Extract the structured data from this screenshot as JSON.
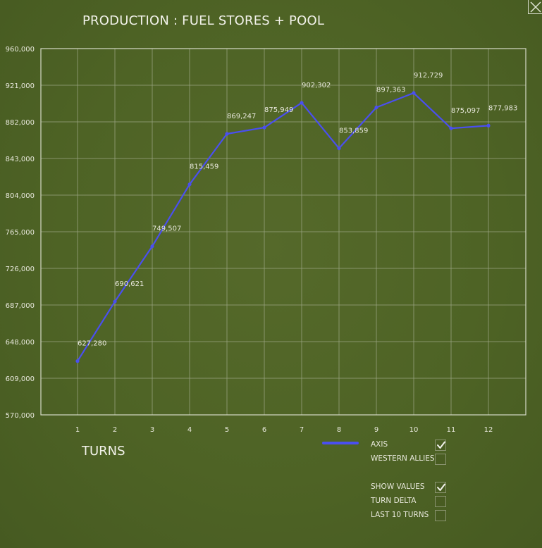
{
  "title": "PRODUCTION : FUEL STORES + POOL",
  "close_icon": "close-icon",
  "turns_label": "TURNS",
  "colors": {
    "axis_line": "#4a4ff0",
    "grid": "#9aa482",
    "frame": "#d6dac8",
    "text": "#e8e8dc"
  },
  "legend": [
    {
      "label": "AXIS",
      "checked": true
    },
    {
      "label": "WESTERN ALLIES",
      "checked": false
    }
  ],
  "options": [
    {
      "label": "SHOW VALUES",
      "checked": true
    },
    {
      "label": "TURN DELTA",
      "checked": false
    },
    {
      "label": "LAST 10 TURNS",
      "checked": false
    }
  ],
  "chart_data": {
    "type": "line",
    "title": "PRODUCTION : FUEL STORES + POOL",
    "xlabel": "TURNS",
    "ylabel": "",
    "x": [
      1,
      2,
      3,
      4,
      5,
      6,
      7,
      8,
      9,
      10,
      11,
      12
    ],
    "ylim": [
      570000,
      960000
    ],
    "yticks": [
      "570,000",
      "609,000",
      "648,000",
      "687,000",
      "726,000",
      "765,000",
      "804,000",
      "843,000",
      "882,000",
      "921,000",
      "960,000"
    ],
    "grid": true,
    "series": [
      {
        "name": "AXIS",
        "values": [
          627280,
          690621,
          749507,
          815459,
          869247,
          875949,
          902302,
          853859,
          897363,
          912729,
          875097,
          877983
        ],
        "labels": [
          "627,280",
          "690,621",
          "749,507",
          "815,459",
          "869,247",
          "875,949",
          "902,302",
          "853,859",
          "897,363",
          "912,729",
          "875,097",
          "877,983"
        ]
      }
    ]
  }
}
